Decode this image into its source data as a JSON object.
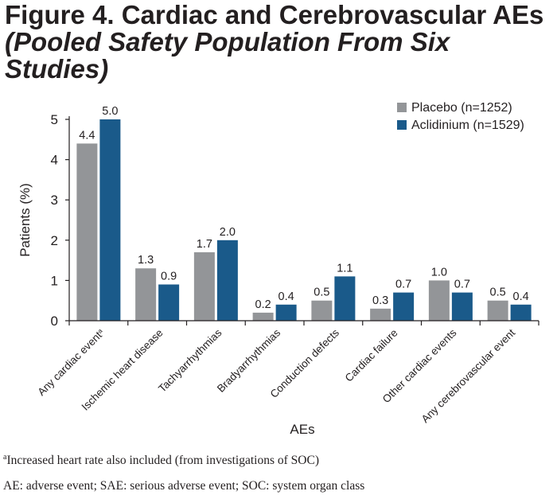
{
  "figure": {
    "title_bold": "Figure 4. Cardiac and Cerebrovascular AEs",
    "title_italic": "(Pooled Safety Population From Six Studies)"
  },
  "footnotes": {
    "note_a_marker": "a",
    "note_a_text": "Increased heart rate also included (from investigations of SOC)",
    "abbreviations": "AE: adverse event; SAE: serious adverse event; SOC: system organ class"
  },
  "colors": {
    "placebo": "#939598",
    "aclidinium": "#1a5a8a",
    "axis": "#231f20"
  },
  "chart_data": {
    "type": "bar",
    "title": "",
    "xlabel": "AEs",
    "ylabel": "Patients (%)",
    "ylim": [
      0,
      5
    ],
    "yticks": [
      0,
      1,
      2,
      3,
      4,
      5
    ],
    "grid": false,
    "legend_position": "top-right",
    "categories": [
      "Any cardiac event",
      "Ischemic heart disease",
      "Tachyarrhythmias",
      "Bradyarrhythmias",
      "Conduction defects",
      "Cardiac failure",
      "Other cardiac events",
      "Any cerebrovascular event"
    ],
    "category_superscripts": [
      "a",
      "",
      "",
      "",
      "",
      "",
      "",
      ""
    ],
    "series": [
      {
        "name": "Placebo (n=1252)",
        "values": [
          4.4,
          1.3,
          1.7,
          0.2,
          0.5,
          0.3,
          1.0,
          0.5
        ],
        "labels": [
          "4.4",
          "1.3",
          "1.7",
          "0.2",
          "0.5",
          "0.3",
          "1.0",
          "0.5"
        ]
      },
      {
        "name": "Aclidinium (n=1529)",
        "values": [
          5.0,
          0.9,
          2.0,
          0.4,
          1.1,
          0.7,
          0.7,
          0.4
        ],
        "labels": [
          "5.0",
          "0.9",
          "2.0",
          "0.4",
          "1.1",
          "0.7",
          "0.7",
          "0.4"
        ]
      }
    ]
  }
}
